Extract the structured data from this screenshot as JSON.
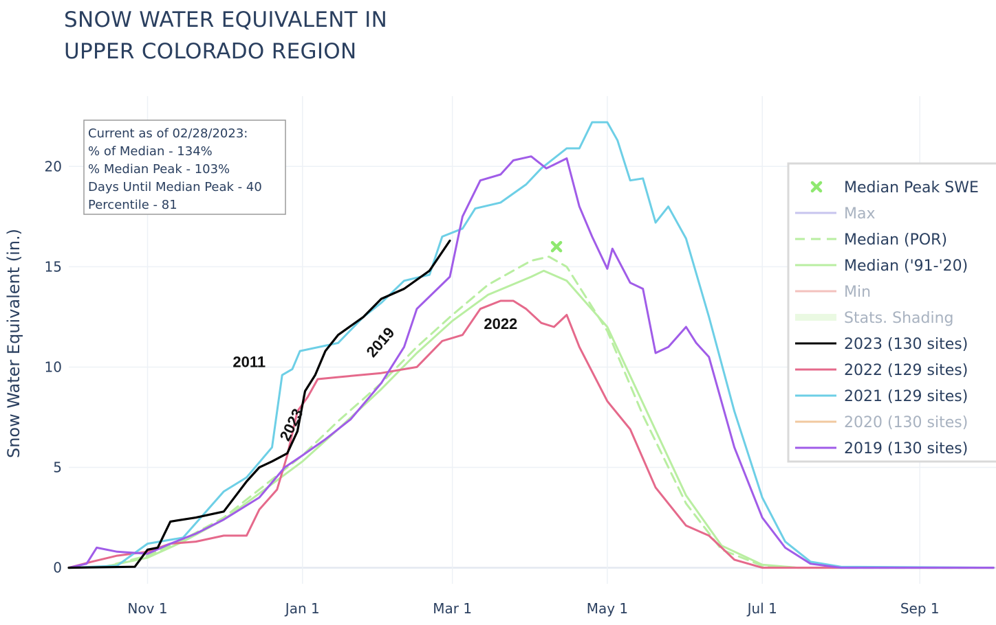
{
  "title_lines": [
    "SNOW WATER EQUIVALENT IN",
    "UPPER COLORADO REGION"
  ],
  "info_box": [
    "Current as of 02/28/2023:",
    "% of Median - 134%",
    "% Median Peak - 103%",
    "Days Until Median Peak - 40",
    "Percentile - 81"
  ],
  "chart_data": {
    "type": "line",
    "title": "SNOW WATER EQUIVALENT IN UPPER COLORADO REGION",
    "xlabel": "",
    "ylabel": "Snow Water Equivalent (in.)",
    "x_unit": "water-year date",
    "x_start": "Oct 1",
    "x_end": "Sep 30",
    "ylim": [
      -0.8,
      23.5
    ],
    "yticks": [
      0,
      5,
      10,
      15,
      20
    ],
    "xticks": [
      {
        "x": "Nov 1",
        "label": "Nov 1"
      },
      {
        "x": "Jan 1",
        "label": "Jan 1"
      },
      {
        "x": "Mar 1",
        "label": "Mar 1"
      },
      {
        "x": "May 1",
        "label": "May 1"
      },
      {
        "x": "Jul 1",
        "label": "Jul 1"
      },
      {
        "x": "Sep 1",
        "label": "Sep 1"
      }
    ],
    "grid": true,
    "legend_position": "right",
    "series": [
      {
        "name": "Median Peak SWE",
        "kind": "marker",
        "color": "#8ee86f",
        "points": [
          [
            "Apr 11",
            16.0
          ]
        ]
      },
      {
        "name": "Max",
        "kind": "line",
        "color": "#c7c4ee",
        "muted": true,
        "points": []
      },
      {
        "name": "Median (POR)",
        "kind": "line",
        "dash": true,
        "color": "#b9eea1",
        "points": [
          [
            "Oct 1",
            0
          ],
          [
            "Oct 15",
            0.05
          ],
          [
            "Nov 1",
            0.6
          ],
          [
            "Nov 15",
            1.4
          ],
          [
            "Dec 1",
            2.5
          ],
          [
            "Dec 15",
            3.9
          ],
          [
            "Jan 1",
            5.6
          ],
          [
            "Jan 15",
            7.3
          ],
          [
            "Feb 1",
            9.2
          ],
          [
            "Feb 15",
            11.0
          ],
          [
            "Mar 1",
            12.6
          ],
          [
            "Mar 15",
            14.1
          ],
          [
            "Apr 1",
            15.3
          ],
          [
            "Apr 8",
            15.5
          ],
          [
            "Apr 15",
            15.0
          ],
          [
            "May 1",
            11.8
          ],
          [
            "May 15",
            7.6
          ],
          [
            "Jun 1",
            3.2
          ],
          [
            "Jun 15",
            0.9
          ],
          [
            "Jul 1",
            0.1
          ],
          [
            "Jul 15",
            0
          ],
          [
            "Sep 30",
            0
          ]
        ]
      },
      {
        "name": "Median ('91-'20)",
        "kind": "line",
        "color": "#b9eea1",
        "points": [
          [
            "Oct 1",
            0
          ],
          [
            "Oct 15",
            0.05
          ],
          [
            "Nov 1",
            0.5
          ],
          [
            "Nov 15",
            1.3
          ],
          [
            "Dec 1",
            2.4
          ],
          [
            "Dec 15",
            3.7
          ],
          [
            "Jan 1",
            5.3
          ],
          [
            "Jan 15",
            6.9
          ],
          [
            "Feb 1",
            8.9
          ],
          [
            "Feb 15",
            10.7
          ],
          [
            "Mar 1",
            12.3
          ],
          [
            "Mar 15",
            13.6
          ],
          [
            "Apr 1",
            14.5
          ],
          [
            "Apr 6",
            14.8
          ],
          [
            "Apr 15",
            14.3
          ],
          [
            "May 1",
            12.0
          ],
          [
            "May 15",
            8.2
          ],
          [
            "Jun 1",
            3.6
          ],
          [
            "Jun 15",
            1.1
          ],
          [
            "Jul 1",
            0.15
          ],
          [
            "Jul 15",
            0
          ],
          [
            "Sep 30",
            0
          ]
        ]
      },
      {
        "name": "Min",
        "kind": "line",
        "color": "#f3c2bd",
        "muted": true,
        "points": []
      },
      {
        "name": "Stats. Shading",
        "kind": "area",
        "color": "#eaf9e2",
        "muted": true,
        "points": []
      },
      {
        "name": "2023 (130 sites)",
        "kind": "line",
        "color": "#000000",
        "points": [
          [
            "Oct 1",
            0
          ],
          [
            "Oct 27",
            0.05
          ],
          [
            "Nov 1",
            0.9
          ],
          [
            "Nov 5",
            1.0
          ],
          [
            "Nov 10",
            2.3
          ],
          [
            "Nov 20",
            2.5
          ],
          [
            "Dec 1",
            2.8
          ],
          [
            "Dec 10",
            4.3
          ],
          [
            "Dec 15",
            5.0
          ],
          [
            "Dec 20",
            5.3
          ],
          [
            "Dec 26",
            5.7
          ],
          [
            "Dec 30",
            6.8
          ],
          [
            "Jan 2",
            8.8
          ],
          [
            "Jan 6",
            9.6
          ],
          [
            "Jan 10",
            10.8
          ],
          [
            "Jan 15",
            11.6
          ],
          [
            "Jan 25",
            12.5
          ],
          [
            "Feb 1",
            13.4
          ],
          [
            "Feb 10",
            13.9
          ],
          [
            "Feb 20",
            14.8
          ],
          [
            "Feb 28",
            16.3
          ]
        ]
      },
      {
        "name": "2022 (129 sites)",
        "kind": "line",
        "color": "#e5698b",
        "points": [
          [
            "Oct 1",
            0
          ],
          [
            "Oct 10",
            0.3
          ],
          [
            "Oct 20",
            0.6
          ],
          [
            "Nov 1",
            0.8
          ],
          [
            "Nov 10",
            1.2
          ],
          [
            "Nov 20",
            1.3
          ],
          [
            "Dec 1",
            1.6
          ],
          [
            "Dec 10",
            1.6
          ],
          [
            "Dec 15",
            2.9
          ],
          [
            "Dec 22",
            3.9
          ],
          [
            "Dec 26",
            5.6
          ],
          [
            "Dec 30",
            7.8
          ],
          [
            "Jan 3",
            8.5
          ],
          [
            "Jan 7",
            9.4
          ],
          [
            "Jan 15",
            9.5
          ],
          [
            "Feb 1",
            9.7
          ],
          [
            "Feb 15",
            10.0
          ],
          [
            "Feb 25",
            11.3
          ],
          [
            "Mar 5",
            11.6
          ],
          [
            "Mar 12",
            12.9
          ],
          [
            "Mar 20",
            13.3
          ],
          [
            "Mar 25",
            13.3
          ],
          [
            "Mar 30",
            12.9
          ],
          [
            "Apr 5",
            12.2
          ],
          [
            "Apr 10",
            12.0
          ],
          [
            "Apr 15",
            12.6
          ],
          [
            "Apr 20",
            11.0
          ],
          [
            "May 1",
            8.3
          ],
          [
            "May 10",
            6.9
          ],
          [
            "May 20",
            4.0
          ],
          [
            "Jun 1",
            2.1
          ],
          [
            "Jun 10",
            1.6
          ],
          [
            "Jun 20",
            0.4
          ],
          [
            "Jul 1",
            0
          ],
          [
            "Sep 30",
            0
          ]
        ]
      },
      {
        "name": "2021 (129 sites)",
        "kind": "line",
        "color": "#6dcfe6",
        "points": [
          [
            "Oct 1",
            0
          ],
          [
            "Oct 20",
            0.1
          ],
          [
            "Nov 1",
            1.2
          ],
          [
            "Nov 15",
            1.5
          ],
          [
            "Dec 1",
            3.8
          ],
          [
            "Dec 10",
            4.5
          ],
          [
            "Dec 20",
            6.0
          ],
          [
            "Dec 24",
            9.6
          ],
          [
            "Dec 28",
            9.9
          ],
          [
            "Dec 31",
            10.8
          ],
          [
            "Jan 15",
            11.2
          ],
          [
            "Jan 25",
            12.5
          ],
          [
            "Feb 1",
            13.2
          ],
          [
            "Feb 10",
            14.3
          ],
          [
            "Feb 20",
            14.6
          ],
          [
            "Feb 25",
            16.5
          ],
          [
            "Mar 5",
            16.9
          ],
          [
            "Mar 10",
            17.9
          ],
          [
            "Mar 20",
            18.2
          ],
          [
            "Mar 30",
            19.1
          ],
          [
            "Apr 5",
            19.9
          ],
          [
            "Apr 15",
            20.9
          ],
          [
            "Apr 20",
            20.9
          ],
          [
            "Apr 25",
            22.2
          ],
          [
            "May 1",
            22.2
          ],
          [
            "May 5",
            21.3
          ],
          [
            "May 10",
            19.3
          ],
          [
            "May 15",
            19.4
          ],
          [
            "May 20",
            17.2
          ],
          [
            "May 25",
            18.0
          ],
          [
            "Jun 1",
            16.4
          ],
          [
            "Jun 10",
            12.5
          ],
          [
            "Jun 20",
            7.8
          ],
          [
            "Jul 1",
            3.5
          ],
          [
            "Jul 10",
            1.3
          ],
          [
            "Jul 20",
            0.3
          ],
          [
            "Aug 1",
            0.05
          ],
          [
            "Sep 30",
            0
          ]
        ]
      },
      {
        "name": "2020 (130 sites)",
        "kind": "line",
        "color": "#f1c9a0",
        "muted": true,
        "points": []
      },
      {
        "name": "2019 (130 sites)",
        "kind": "line",
        "color": "#a05ce8",
        "points": [
          [
            "Oct 1",
            0
          ],
          [
            "Oct 8",
            0.2
          ],
          [
            "Oct 12",
            1.0
          ],
          [
            "Oct 20",
            0.8
          ],
          [
            "Nov 1",
            0.7
          ],
          [
            "Nov 10",
            1.2
          ],
          [
            "Nov 20",
            1.7
          ],
          [
            "Dec 1",
            2.4
          ],
          [
            "Dec 15",
            3.5
          ],
          [
            "Dec 25",
            5.0
          ],
          [
            "Jan 1",
            5.6
          ],
          [
            "Jan 10",
            6.4
          ],
          [
            "Jan 20",
            7.4
          ],
          [
            "Feb 1",
            9.2
          ],
          [
            "Feb 10",
            11.0
          ],
          [
            "Feb 15",
            12.9
          ],
          [
            "Feb 28",
            14.5
          ],
          [
            "Mar 5",
            17.5
          ],
          [
            "Mar 12",
            19.3
          ],
          [
            "Mar 20",
            19.6
          ],
          [
            "Mar 25",
            20.3
          ],
          [
            "Apr 1",
            20.5
          ],
          [
            "Apr 7",
            19.9
          ],
          [
            "Apr 15",
            20.4
          ],
          [
            "Apr 20",
            18.0
          ],
          [
            "Apr 25",
            16.5
          ],
          [
            "May 1",
            14.9
          ],
          [
            "May 3",
            15.9
          ],
          [
            "May 10",
            14.2
          ],
          [
            "May 15",
            13.9
          ],
          [
            "May 20",
            10.7
          ],
          [
            "May 25",
            11.0
          ],
          [
            "Jun 1",
            12.0
          ],
          [
            "Jun 5",
            11.2
          ],
          [
            "Jun 10",
            10.5
          ],
          [
            "Jun 20",
            6.0
          ],
          [
            "Jul 1",
            2.5
          ],
          [
            "Jul 10",
            1.0
          ],
          [
            "Jul 20",
            0.2
          ],
          [
            "Aug 1",
            0
          ],
          [
            "Sep 30",
            0
          ]
        ]
      }
    ],
    "annotations": [
      {
        "text": "2011",
        "x": "Dec 11",
        "y": 10.2,
        "rotation": 0
      },
      {
        "text": "2023",
        "x": "Dec 28",
        "y": 7.1,
        "rotation": -64
      },
      {
        "text": "2019",
        "x": "Feb 1",
        "y": 11.2,
        "rotation": -49
      },
      {
        "text": "2022",
        "x": "Mar 20",
        "y": 12.1,
        "rotation": 0
      }
    ]
  }
}
